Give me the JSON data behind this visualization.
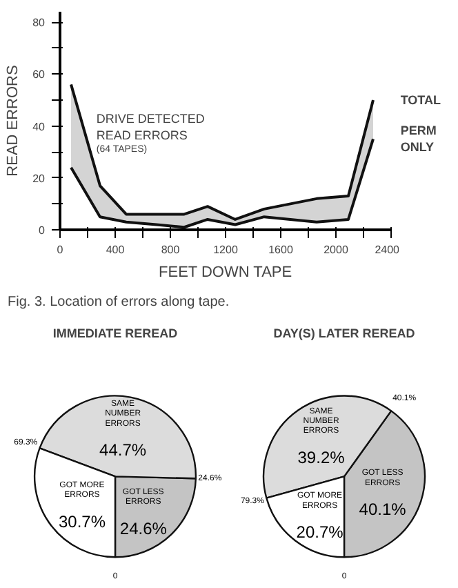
{
  "chart_data": [
    {
      "type": "line",
      "xlabel": "FEET DOWN TAPE",
      "ylabel": "READ ERRORS",
      "x": [
        80,
        290,
        480,
        700,
        900,
        1070,
        1270,
        1480,
        1860,
        2090,
        2270
      ],
      "series": [
        {
          "name": "TOTAL",
          "color": "#111111",
          "values": [
            56,
            17,
            6,
            6,
            6,
            9,
            4,
            8,
            12,
            13,
            50
          ],
          "lower": [
            24,
            5,
            3,
            2,
            1,
            4,
            2,
            5,
            3,
            4,
            35
          ],
          "upper": [
            56,
            17,
            6,
            6,
            6,
            9,
            4,
            8,
            12,
            13,
            50
          ]
        },
        {
          "name": "PERM ONLY",
          "color": "#111111",
          "values": [
            24,
            5,
            3,
            2,
            1,
            4,
            2,
            5,
            3,
            4,
            35
          ]
        }
      ],
      "xlim": [
        0,
        2400
      ],
      "ylim": [
        0,
        84
      ],
      "xticks": [
        0,
        {
          "value": 200,
          "label": null
        },
        400,
        {
          "value": 600,
          "label": null
        },
        800,
        {
          "value": 1000,
          "label": null
        },
        1200,
        {
          "value": 1400,
          "label": null
        },
        1600,
        {
          "value": 1800,
          "label": null
        },
        2000,
        {
          "value": 2200,
          "label": null
        },
        2400
      ],
      "yticks": [
        0,
        {
          "value": 10,
          "label": null
        },
        20,
        {
          "value": 30,
          "label": null
        },
        40,
        {
          "value": 50,
          "label": null
        },
        60,
        {
          "value": 70,
          "label": null
        },
        80
      ],
      "grid": false,
      "marker": "none",
      "line_style": "solid",
      "annotations": [
        "DRIVE DETECTED\nREAD ERRORS",
        "(64 TAPES)",
        "Fig. 3. Location of errors along tape."
      ]
    },
    {
      "type": "pie",
      "title": "IMMEDIATE REREAD",
      "categories": [
        "GOT LESS\nERRORS",
        "SAME\nNUMBER\nERRORS",
        "GOT MORE\nERRORS"
      ],
      "values": [
        24.6,
        44.7,
        30.7
      ],
      "colors": [
        "#c4c4c4",
        "#dcdcdc",
        "#ffffff"
      ],
      "value_labels": [
        "24.6%",
        "44.7%",
        "30.7%"
      ],
      "annotations": [
        "0",
        "24.6%",
        "69.3%"
      ]
    },
    {
      "type": "pie",
      "title": "DAY(S) LATER REREAD",
      "categories": [
        "GOT LESS\nERRORS",
        "SAME\nNUMBER\nERRORS",
        "GOT MORE\nERRORS"
      ],
      "values": [
        40.1,
        39.2,
        20.7
      ],
      "colors": [
        "#c4c4c4",
        "#dcdcdc",
        "#ffffff"
      ],
      "value_labels": [
        "40.1%",
        "39.2%",
        "20.7%"
      ],
      "annotations": [
        "0",
        "40.1%",
        "79.3%"
      ]
    }
  ]
}
